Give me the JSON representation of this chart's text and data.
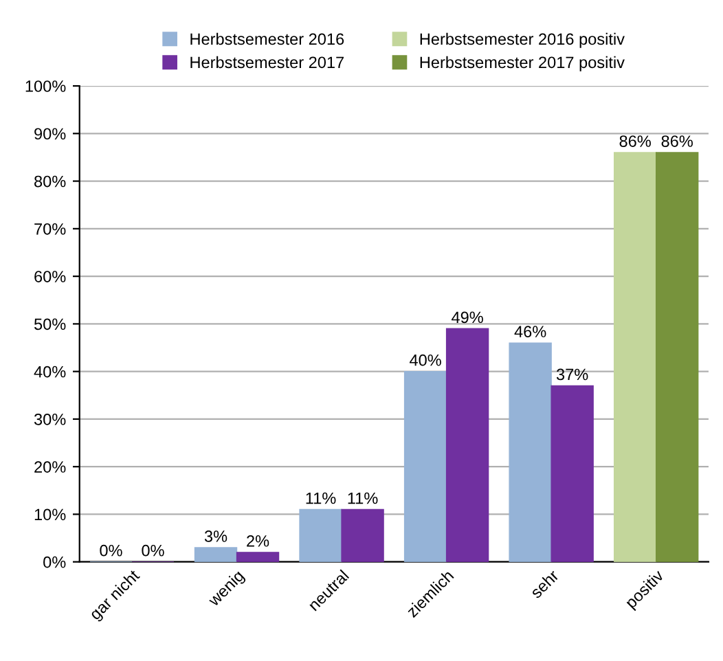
{
  "chart_data": {
    "type": "bar",
    "categories": [
      "gar nicht",
      "wenig",
      "neutral",
      "ziemlich",
      "sehr",
      "positiv"
    ],
    "series": [
      {
        "name": "Herbstsemester 2016",
        "color": "#95b3d7",
        "values": [
          0,
          3,
          11,
          40,
          46,
          null
        ],
        "value_labels": [
          "0%",
          "3%",
          "11%",
          "40%",
          "46%",
          null
        ]
      },
      {
        "name": "Herbstsemester 2017",
        "color": "#7030a0",
        "values": [
          0,
          2,
          11,
          49,
          37,
          null
        ],
        "value_labels": [
          "0%",
          "2%",
          "11%",
          "49%",
          "37%",
          null
        ]
      },
      {
        "name": "Herbstsemester 2016 positiv",
        "color": "#c3d69b",
        "values": [
          null,
          null,
          null,
          null,
          null,
          86
        ],
        "value_labels": [
          null,
          null,
          null,
          null,
          null,
          "86%"
        ]
      },
      {
        "name": "Herbstsemester 2017 positiv",
        "color": "#77933c",
        "values": [
          null,
          null,
          null,
          null,
          null,
          86
        ],
        "value_labels": [
          null,
          null,
          null,
          null,
          null,
          "86%"
        ]
      }
    ],
    "ylim": [
      0,
      100
    ],
    "yticks": [
      {
        "value": 0,
        "label": "0%"
      },
      {
        "value": 10,
        "label": "10%"
      },
      {
        "value": 20,
        "label": "20%"
      },
      {
        "value": 30,
        "label": "30%"
      },
      {
        "value": 40,
        "label": "40%"
      },
      {
        "value": 50,
        "label": "50%"
      },
      {
        "value": 60,
        "label": "60%"
      },
      {
        "value": 70,
        "label": "70%"
      },
      {
        "value": 80,
        "label": "80%"
      },
      {
        "value": 90,
        "label": "90%"
      },
      {
        "value": 100,
        "label": "100%"
      }
    ],
    "grid": "y",
    "legend": "top"
  }
}
